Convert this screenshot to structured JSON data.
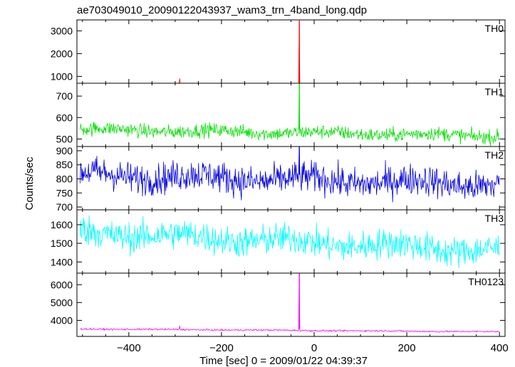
{
  "chart_data": {
    "type": "line",
    "title": "ae703049010_20090122043937_wam3_trn_4band_long.qdp",
    "xlabel": "Time [sec] 0 = 2009/01/22 04:39:37",
    "ylabel": "Counts/sec",
    "xlim": [
      -512,
      412
    ],
    "xticks": [
      -400,
      -200,
      0,
      200,
      400
    ],
    "xtick_labels": [
      "−400",
      "−200",
      "0",
      "200",
      "400"
    ],
    "x_start": -505,
    "x_end": 400,
    "spike_time": -32,
    "panels": [
      {
        "name": "TH0",
        "color": "#ff0000",
        "ylim": [
          700,
          3480
        ],
        "yticks": [
          1000,
          2000,
          3000
        ],
        "ytick_labels": [
          "1000",
          "2000",
          "3000"
        ],
        "baseline": [
          [
            -505,
            660
          ],
          [
            400,
            640
          ]
        ],
        "noise": 40,
        "spike_peak": 3450,
        "extra_spikes": [
          [
            -290,
            900
          ]
        ]
      },
      {
        "name": "TH1",
        "color": "#00e000",
        "ylim": [
          465,
          760
        ],
        "yticks": [
          500,
          600,
          700
        ],
        "ytick_labels": [
          "500",
          "600",
          "700"
        ],
        "baseline": [
          [
            -505,
            545
          ],
          [
            400,
            515
          ]
        ],
        "noise": 55,
        "spike_peak": 760,
        "extra_spikes": []
      },
      {
        "name": "TH2",
        "color": "#0000e0",
        "ylim": [
          690,
          915
        ],
        "yticks": [
          700,
          750,
          800,
          850,
          900
        ],
        "ytick_labels": [
          "700",
          "750",
          "800",
          "850",
          "900"
        ],
        "baseline": [
          [
            -505,
            815
          ],
          [
            400,
            780
          ]
        ],
        "noise": 95,
        "spike_peak": 915,
        "extra_spikes": []
      },
      {
        "name": "TH3",
        "color": "#00ffff",
        "ylim": [
          1340,
          1680
        ],
        "yticks": [
          1400,
          1500,
          1600
        ],
        "ytick_labels": [
          "1400",
          "1500",
          "1600"
        ],
        "baseline": [
          [
            -505,
            1560
          ],
          [
            400,
            1460
          ]
        ],
        "noise": 140,
        "spike_peak": 1560,
        "extra_spikes": []
      },
      {
        "name": "TH0123",
        "color": "#ff00ff",
        "ylim": [
          3100,
          6650
        ],
        "yticks": [
          4000,
          5000,
          6000
        ],
        "ytick_labels": [
          "4000",
          "5000",
          "6000"
        ],
        "baseline": [
          [
            -505,
            3520
          ],
          [
            400,
            3360
          ]
        ],
        "noise": 80,
        "spike_peak": 6650,
        "extra_spikes": [
          [
            -290,
            3700
          ]
        ]
      }
    ]
  }
}
